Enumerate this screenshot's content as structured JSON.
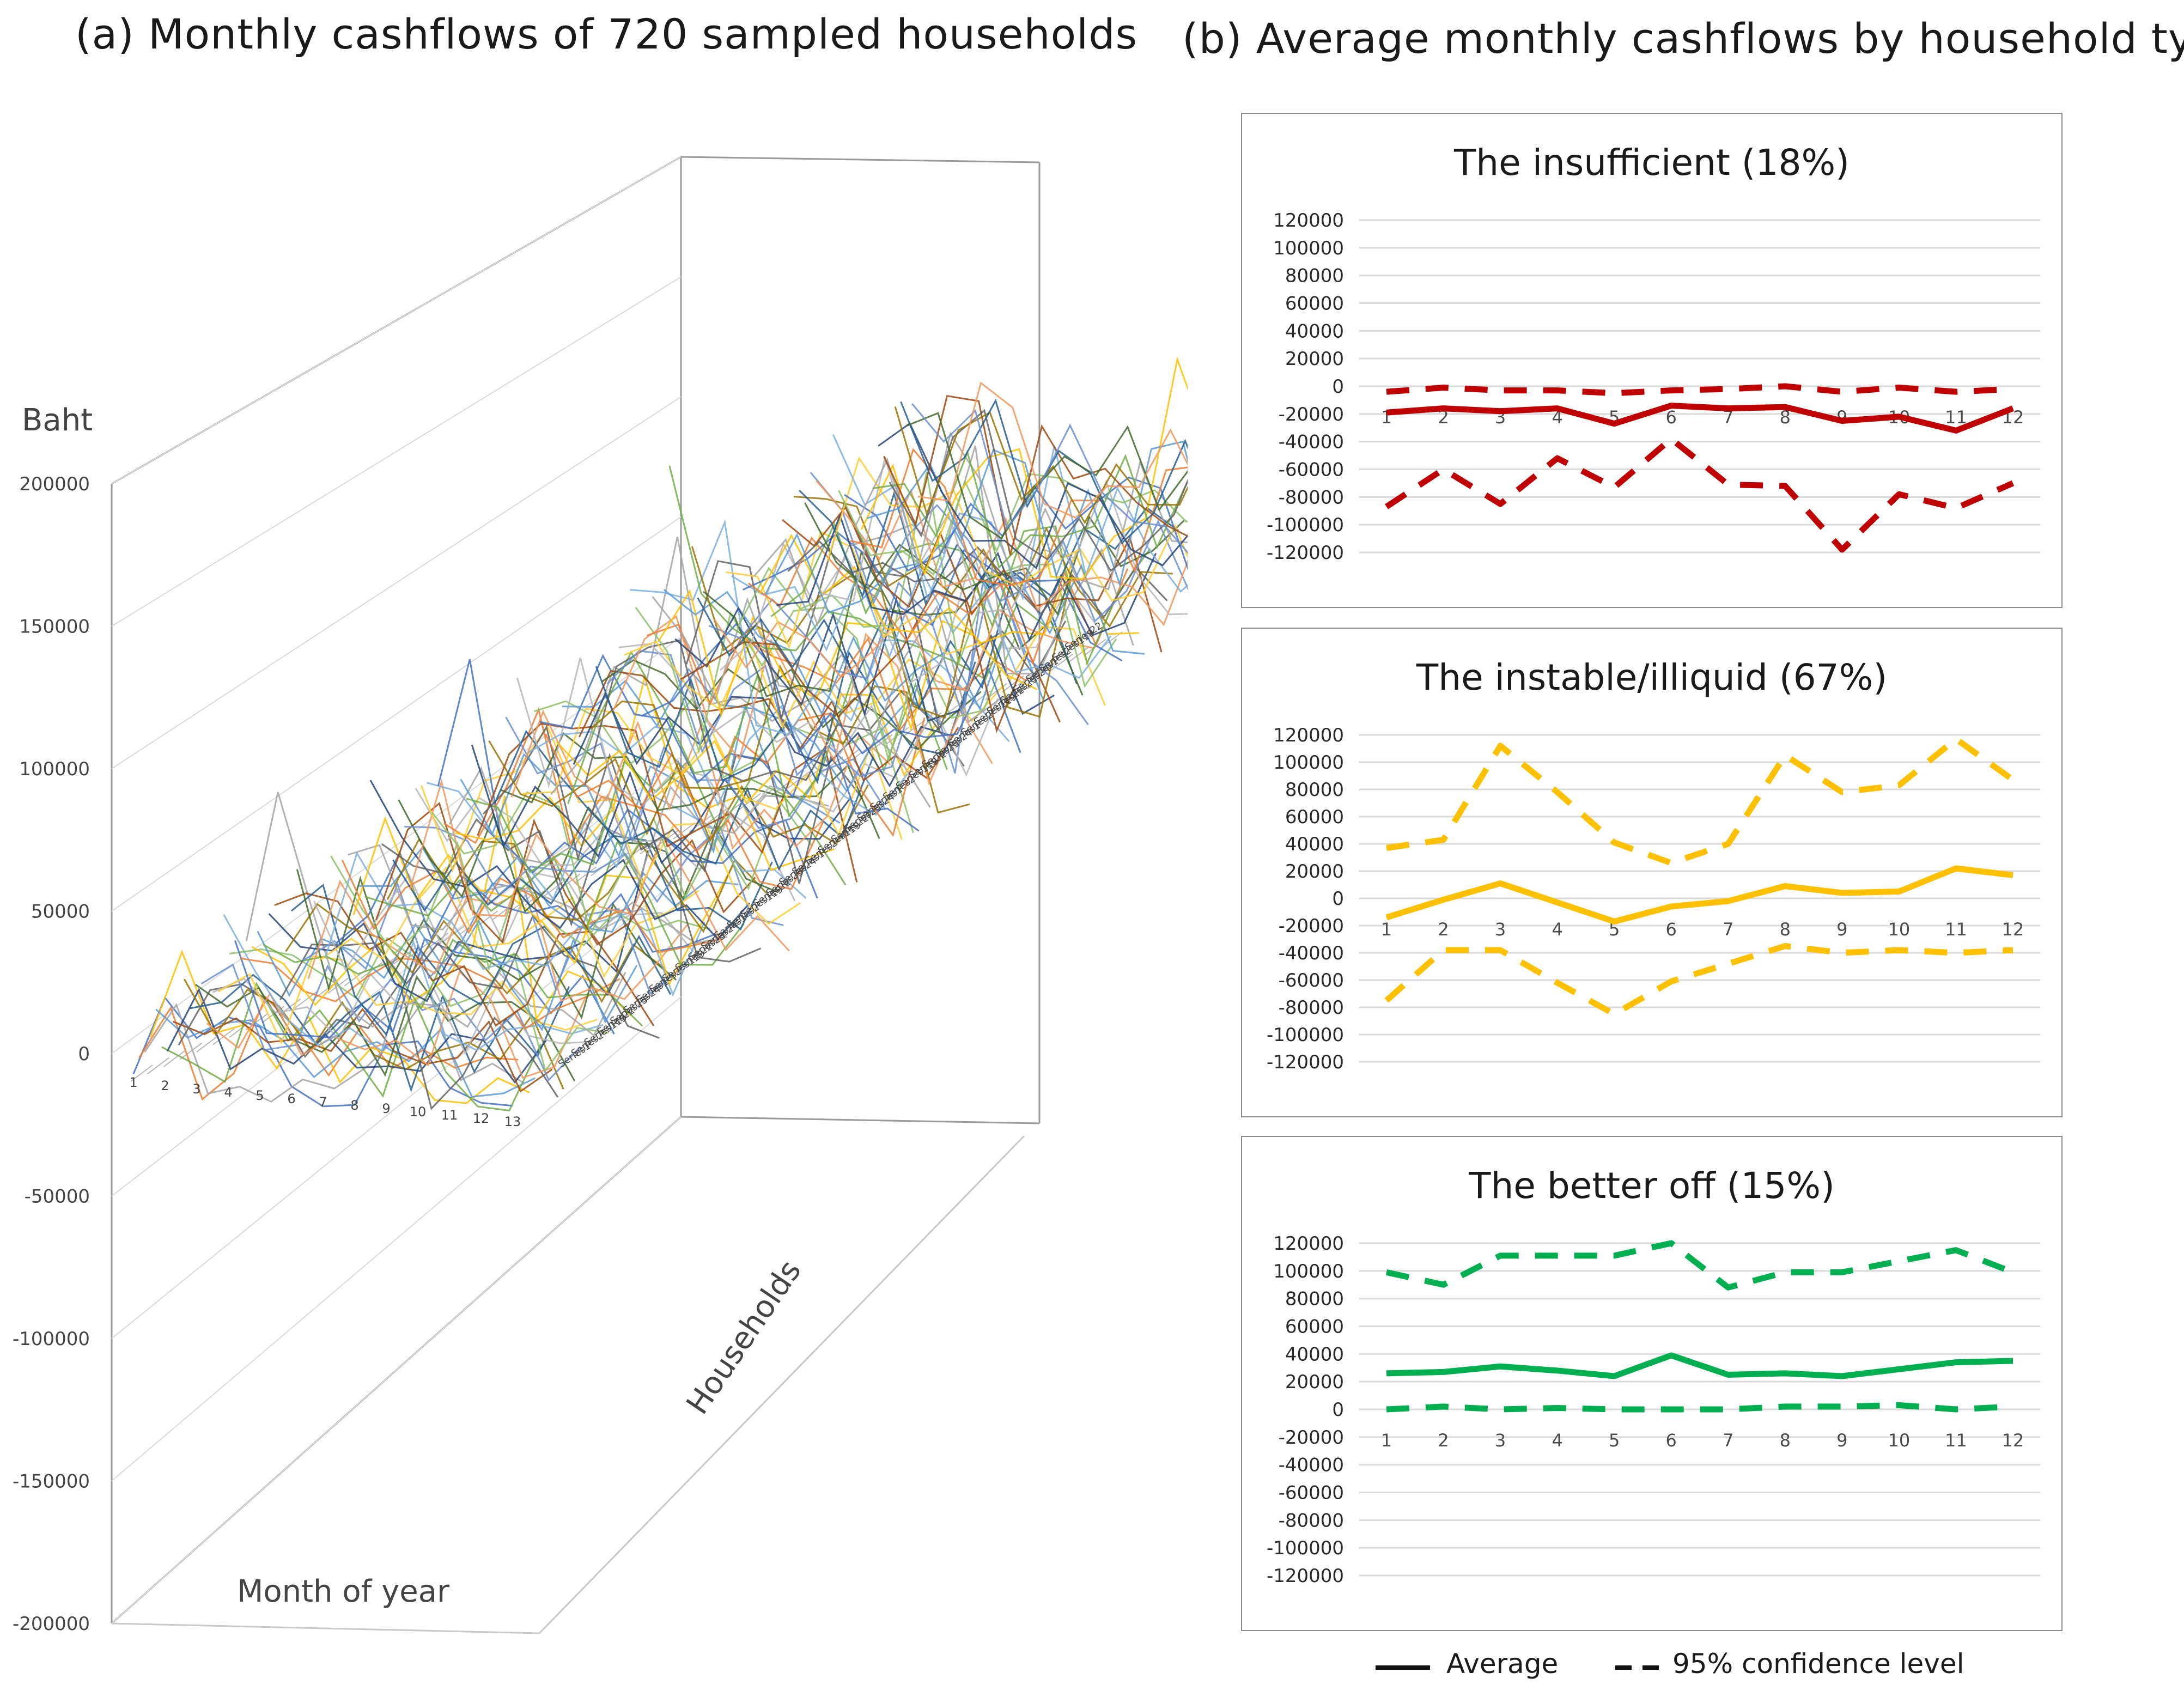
{
  "panel_a": {
    "title": "(a) Monthly cashflows of 720 sampled households",
    "y_axis_label": "Baht",
    "x_axis_label": "Month of year",
    "depth_axis_label": "Households",
    "series_labels": [
      "Series1",
      "Series2",
      "Series119",
      "Series22",
      "Series23",
      "Series24"
    ]
  },
  "panel_b": {
    "title": "(b) Average monthly cashflows by household type"
  },
  "legend": {
    "average": "Average",
    "confidence": "95% confidence level"
  },
  "colors": {
    "insufficient": "#c00000",
    "instable": "#ffc000",
    "better_off": "#00b050",
    "grid": "#d9d9d9"
  },
  "chart_data": [
    {
      "type": "line",
      "title": "(a) Monthly cashflows of 720 sampled households",
      "xlabel": "Month of year",
      "ylabel": "Baht",
      "zlabel": "Households",
      "categories": [
        "1",
        "2",
        "3",
        "4",
        "5",
        "6",
        "7",
        "8",
        "9",
        "10",
        "11",
        "12",
        "13"
      ],
      "yticks": [
        "200000",
        "150000",
        "100000",
        "50000",
        "0",
        "-50000",
        "-100000",
        "-150000",
        "-200000"
      ],
      "ylim": [
        -200000,
        200000
      ],
      "note_series_count": 720,
      "grid": true,
      "sample_series": [
        {
          "name": "Series1",
          "values": [
            0,
            -20000,
            5000,
            -30000,
            10000,
            -5000,
            20000,
            -10000,
            15000,
            -25000,
            5000,
            0,
            -15000
          ]
        },
        {
          "name": "Series2",
          "values": [
            10000,
            30000,
            -40000,
            20000,
            0,
            50000,
            -20000,
            10000,
            -60000,
            30000,
            20000,
            10000,
            0
          ]
        },
        {
          "name": "Series119",
          "values": [
            20000,
            60000,
            10000,
            80000,
            30000,
            40000,
            120000,
            60000,
            90000,
            50000,
            140000,
            70000,
            100000
          ]
        }
      ]
    },
    {
      "type": "line",
      "title": "The insufficient (18%)",
      "categories": [
        "1",
        "2",
        "3",
        "4",
        "5",
        "6",
        "7",
        "8",
        "9",
        "10",
        "11",
        "12"
      ],
      "ylim": [
        -120000,
        120000
      ],
      "yticks": [
        "120000",
        "100000",
        "80000",
        "60000",
        "40000",
        "20000",
        "0",
        "-20000",
        "-40000",
        "-60000",
        "-80000",
        "-100000",
        "-120000"
      ],
      "grid": true,
      "series": [
        {
          "name": "Average",
          "style": "solid",
          "values": [
            -19000,
            -16000,
            -18000,
            -16000,
            -27000,
            -14000,
            -16000,
            -15000,
            -25000,
            -22000,
            -32000,
            -16000
          ]
        },
        {
          "name": "95% confidence level",
          "style": "dashed",
          "values": [
            -4000,
            -1000,
            -3000,
            -3000,
            -5000,
            -3000,
            -2000,
            0,
            -4000,
            -1000,
            -4000,
            -2000
          ]
        },
        {
          "name": "95% confidence level",
          "style": "dashed",
          "values": [
            -87000,
            -60000,
            -85000,
            -52000,
            -73000,
            -38000,
            -71000,
            -72000,
            -118000,
            -78000,
            -88000,
            -70000
          ]
        }
      ]
    },
    {
      "type": "line",
      "title": "The instable/illiquid (67%)",
      "categories": [
        "1",
        "2",
        "3",
        "4",
        "5",
        "6",
        "7",
        "8",
        "9",
        "10",
        "11",
        "12"
      ],
      "ylim": [
        -120000,
        120000
      ],
      "yticks": [
        "120000",
        "100000",
        "80000",
        "60000",
        "40000",
        "20000",
        "0",
        "-20000",
        "-40000",
        "-60000",
        "-80000",
        "-100000",
        "-120000"
      ],
      "grid": true,
      "series": [
        {
          "name": "Average",
          "style": "solid",
          "values": [
            -14000,
            -1000,
            11000,
            -3000,
            -17000,
            -6000,
            -2000,
            9000,
            4000,
            5000,
            22000,
            17000
          ]
        },
        {
          "name": "95% confidence level",
          "style": "dashed",
          "values": [
            37000,
            43000,
            112000,
            78000,
            41000,
            26000,
            40000,
            105000,
            78000,
            83000,
            117000,
            87000
          ]
        },
        {
          "name": "95% confidence level",
          "style": "dashed",
          "values": [
            -75000,
            -38000,
            -38000,
            -62000,
            -85000,
            -61000,
            -48000,
            -35000,
            -40000,
            -38000,
            -40000,
            -38000
          ]
        }
      ]
    },
    {
      "type": "line",
      "title": "The better off (15%)",
      "categories": [
        "1",
        "2",
        "3",
        "4",
        "5",
        "6",
        "7",
        "8",
        "9",
        "10",
        "11",
        "12"
      ],
      "ylim": [
        -120000,
        120000
      ],
      "yticks": [
        "120000",
        "100000",
        "80000",
        "60000",
        "40000",
        "20000",
        "0",
        "-20000",
        "-40000",
        "-60000",
        "-80000",
        "-100000",
        "-120000"
      ],
      "grid": true,
      "series": [
        {
          "name": "Average",
          "style": "solid",
          "values": [
            26000,
            27000,
            31000,
            28000,
            24000,
            39000,
            25000,
            26000,
            24000,
            29000,
            34000,
            35000
          ]
        },
        {
          "name": "95% confidence level",
          "style": "dashed",
          "values": [
            99000,
            90000,
            111000,
            111000,
            111000,
            120000,
            88000,
            99000,
            99000,
            107000,
            115000,
            99000
          ]
        },
        {
          "name": "95% confidence level",
          "style": "dashed",
          "values": [
            0,
            2000,
            0,
            1000,
            0,
            0,
            0,
            2000,
            2000,
            3000,
            0,
            2000
          ]
        }
      ]
    }
  ]
}
